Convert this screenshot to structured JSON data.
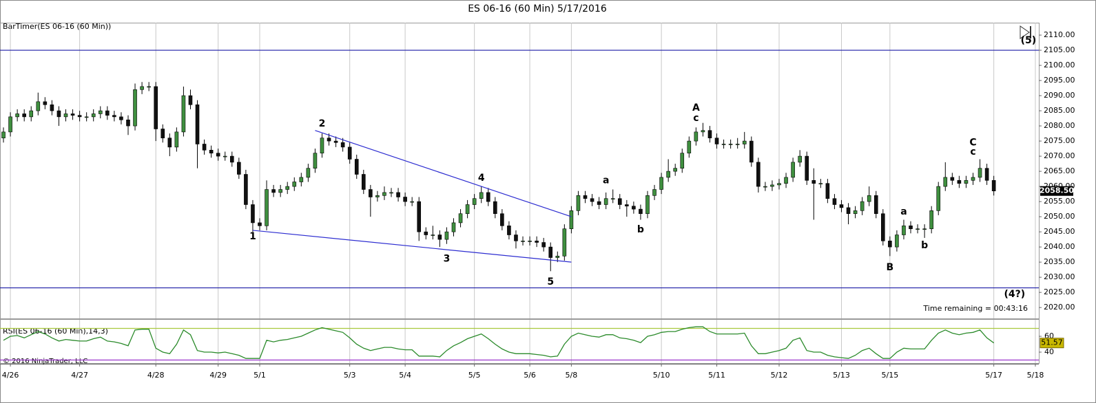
{
  "chart_data": {
    "type": "candlestick",
    "title": "ES 06-16 (60 Min)  5/17/2016",
    "indicator_label": "BarTimer(ES 06-16 (60 Min))",
    "timer_text": "Time remaining = 00:43:16",
    "copyright": "© 2016 NinjaTrader, LLC",
    "categories": [
      null,
      "4/26",
      null,
      null,
      null,
      null,
      null,
      null,
      null,
      null,
      null,
      "4/27",
      null,
      null,
      null,
      null,
      null,
      null,
      null,
      null,
      null,
      null,
      "4/28",
      null,
      null,
      null,
      null,
      null,
      null,
      null,
      null,
      "4/29",
      null,
      null,
      null,
      null,
      null,
      "5/1",
      null,
      null,
      null,
      null,
      null,
      null,
      null,
      null,
      null,
      null,
      null,
      null,
      "5/3",
      null,
      null,
      null,
      null,
      null,
      null,
      null,
      "5/4",
      null,
      null,
      null,
      null,
      null,
      null,
      null,
      null,
      null,
      "5/5",
      null,
      null,
      null,
      null,
      null,
      null,
      null,
      "5/6",
      null,
      null,
      null,
      null,
      null,
      "5/8",
      null,
      null,
      null,
      null,
      null,
      null,
      null,
      null,
      null,
      null,
      null,
      null,
      "5/10",
      null,
      null,
      null,
      null,
      null,
      null,
      null,
      "5/11",
      null,
      null,
      null,
      null,
      null,
      null,
      null,
      null,
      "5/12",
      null,
      null,
      null,
      null,
      null,
      null,
      null,
      null,
      "5/13",
      null,
      null,
      null,
      null,
      null,
      null,
      "5/15",
      null,
      null,
      null,
      null,
      null,
      null,
      null,
      null,
      null,
      null,
      null,
      null,
      null,
      null,
      "5/17",
      null,
      null,
      null,
      null,
      null,
      "5/18"
    ],
    "open": [
      2076,
      2078,
      2083,
      2084,
      2083,
      2085,
      2088,
      2087,
      2085,
      2083,
      2084,
      2083.5,
      2083,
      2083,
      2084,
      2085,
      2083.5,
      2083,
      2082,
      2080,
      2092,
      2093,
      2093,
      2079,
      2076,
      2073,
      2078,
      2090,
      2087,
      2074,
      2072,
      2071,
      2070,
      2070,
      2068,
      2064,
      2054,
      2048,
      2047,
      2059,
      2058,
      2059,
      2060,
      2061.5,
      2063,
      2066,
      2071,
      2076,
      2075,
      2074.5,
      2073,
      2069,
      2064,
      2059,
      2056.5,
      2057,
      2058,
      2058,
      2056.5,
      2055,
      2055,
      2045,
      2044,
      2044,
      2042.5,
      2045,
      2048,
      2051,
      2054,
      2056,
      2058,
      2055,
      2051,
      2047,
      2044,
      2042,
      2042,
      2042,
      2041.5,
      2040,
      2036.5,
      2037,
      2046,
      2052,
      2057,
      2056,
      2055,
      2054,
      2056,
      2056,
      2054,
      2053.5,
      2052.5,
      2051,
      2057,
      2059,
      2063,
      2065,
      2066,
      2071,
      2075,
      2078,
      2078.5,
      2076,
      2074,
      2074,
      2074,
      2074,
      2075,
      2068,
      2060,
      2060,
      2060.5,
      2061,
      2063,
      2068,
      2070,
      2062,
      2061,
      2061,
      2056,
      2054,
      2053,
      2051,
      2052,
      2055,
      2057,
      2051,
      2042,
      2040,
      2044,
      2047,
      2046,
      2046,
      2046,
      2052,
      2060,
      2063,
      2062,
      2061,
      2062,
      2063,
      2066,
      2062,
      null,
      null,
      null,
      null,
      null,
      null
    ],
    "high": [
      2079.5,
      2084.5,
      2085.5,
      2085.5,
      2086.5,
      2091,
      2089.5,
      2088.5,
      2086.5,
      2085.5,
      2085.5,
      2085,
      2084.5,
      2085.5,
      2086.5,
      2086.5,
      2085,
      2084.5,
      2083.5,
      2094,
      2094.5,
      2094.5,
      2094.5,
      2080.5,
      2077.5,
      2079.5,
      2093,
      2092,
      2088.5,
      2075.5,
      2073.5,
      2072.5,
      2071.5,
      2071.5,
      2069.5,
      2065.5,
      2055.5,
      2049.5,
      2062,
      2060.5,
      2060.5,
      2061.5,
      2063,
      2064.5,
      2067.5,
      2072.5,
      2077.5,
      2077.5,
      2076.5,
      2076,
      2074.5,
      2070.5,
      2065.5,
      2060.5,
      2058.5,
      2060,
      2059.5,
      2059.5,
      2058,
      2056.5,
      2056.5,
      2046.5,
      2047,
      2045.5,
      2046.5,
      2049.5,
      2052.5,
      2055.5,
      2057.5,
      2060,
      2059.5,
      2056.5,
      2052.5,
      2048.5,
      2045.5,
      2043.5,
      2043.5,
      2043.5,
      2043,
      2041.5,
      2038.5,
      2047.5,
      2053.5,
      2058.5,
      2058.5,
      2057.5,
      2056.5,
      2058,
      2059,
      2057.5,
      2055.5,
      2055,
      2054,
      2058.5,
      2060.5,
      2064.5,
      2069,
      2067.5,
      2072.5,
      2076.5,
      2079.5,
      2081,
      2080,
      2077.5,
      2075.5,
      2075.5,
      2076,
      2078,
      2076.5,
      2069.5,
      2061.5,
      2062,
      2062.5,
      2064.5,
      2069.5,
      2072,
      2071.5,
      2066,
      2062.5,
      2062.5,
      2057.5,
      2055.5,
      2054.5,
      2053.5,
      2056.5,
      2060,
      2058.5,
      2052.5,
      2043.5,
      2045.5,
      2049,
      2048.5,
      2047.5,
      2047.5,
      2053.5,
      2061.5,
      2068,
      2064.5,
      2063.5,
      2063.5,
      2064.5,
      2069,
      2067.5,
      2063.5,
      null,
      null,
      null,
      null,
      null,
      null
    ],
    "low": [
      2074.5,
      2076.5,
      2081.5,
      2081.5,
      2081.5,
      2083.5,
      2085.5,
      2083.5,
      2080,
      2081.5,
      2082,
      2081.5,
      2081.5,
      2081.5,
      2082.5,
      2082,
      2081.5,
      2080.5,
      2077,
      2078.5,
      2090.5,
      2091.5,
      2075,
      2074.5,
      2070,
      2071.5,
      2076.5,
      2085.5,
      2066,
      2070.5,
      2069.5,
      2068.5,
      2068.5,
      2066.5,
      2062.5,
      2052.5,
      2045,
      2045.5,
      2045.5,
      2056.5,
      2056.5,
      2057.5,
      2058.5,
      2060,
      2061.5,
      2064.5,
      2069.5,
      2073.5,
      2073,
      2071.5,
      2067.5,
      2062.5,
      2057.5,
      2050,
      2055,
      2055.5,
      2056.5,
      2055,
      2053.5,
      2053.5,
      2042,
      2042.5,
      2042.5,
      2040,
      2041,
      2043.5,
      2046.5,
      2049.5,
      2052.5,
      2054.5,
      2053.5,
      2049.5,
      2045.5,
      2042.5,
      2039.5,
      2040.5,
      2040.5,
      2040,
      2038.5,
      2032,
      2035,
      2035.5,
      2044.5,
      2050.5,
      2054.5,
      2053.5,
      2052.5,
      2052.5,
      2054.5,
      2052.5,
      2050,
      2051,
      2049,
      2049.5,
      2055.5,
      2057.5,
      2061.5,
      2063.5,
      2064.5,
      2069.5,
      2073.5,
      2076.5,
      2074.5,
      2072.5,
      2072.5,
      2072.5,
      2072.5,
      2072.5,
      2066.5,
      2058,
      2058.5,
      2058.5,
      2059,
      2059.5,
      2061.5,
      2066.5,
      2060.5,
      2049,
      2059.5,
      2054.5,
      2052.5,
      2051.5,
      2047.5,
      2049.5,
      2050.5,
      2053.5,
      2049.5,
      2040.5,
      2037,
      2038.5,
      2042.5,
      2044.5,
      2044.5,
      2043,
      2044.5,
      2050.5,
      2058.5,
      2060.5,
      2059.5,
      2059.5,
      2060.5,
      2061.5,
      2060.5,
      2057,
      null,
      null,
      null,
      null,
      null,
      null
    ],
    "close": [
      2078,
      2083,
      2084,
      2083,
      2085,
      2088,
      2087,
      2085,
      2083,
      2084,
      2083.5,
      2083,
      2083,
      2084,
      2085,
      2083.5,
      2083,
      2082,
      2080,
      2092,
      2093,
      2093,
      2079,
      2076,
      2073,
      2078,
      2090,
      2087,
      2074,
      2072,
      2071,
      2070,
      2070,
      2068,
      2064,
      2054,
      2048,
      2047,
      2059,
      2058,
      2059,
      2060,
      2061.5,
      2063,
      2066,
      2071,
      2076,
      2075,
      2074.5,
      2073,
      2069,
      2064,
      2059,
      2056.5,
      2057,
      2058,
      2058,
      2056.5,
      2055,
      2055,
      2045,
      2044,
      2044,
      2042.5,
      2045,
      2048,
      2051,
      2054,
      2056,
      2058,
      2055,
      2051,
      2047,
      2044,
      2042,
      2042,
      2042,
      2041.5,
      2040,
      2036.5,
      2037,
      2046,
      2052,
      2057,
      2056,
      2055,
      2054,
      2056,
      2056,
      2054,
      2053.5,
      2052.5,
      2051,
      2057,
      2059,
      2063,
      2065,
      2066,
      2071,
      2075,
      2078,
      2078.5,
      2076,
      2074,
      2074,
      2074,
      2074,
      2075,
      2068,
      2060,
      2060,
      2060.5,
      2061,
      2063,
      2068,
      2070,
      2062,
      2061,
      2061,
      2056,
      2054,
      2053,
      2051,
      2052,
      2055,
      2057,
      2051,
      2042,
      2040,
      2044,
      2047,
      2046,
      2046,
      2046,
      2052,
      2060,
      2063,
      2062,
      2061,
      2062,
      2063,
      2066,
      2062,
      2058.5,
      null,
      null,
      null,
      null,
      null,
      null
    ],
    "close_label": "2058.50",
    "up_color": "#3f8f3f",
    "down_color": "#111111",
    "ylim": [
      2016.4,
      2114.1
    ],
    "yticks": [
      {
        "value": 2020,
        "label": "2020.00"
      },
      {
        "value": 2025,
        "label": "2025.00"
      },
      {
        "value": 2030,
        "label": "2030.00"
      },
      {
        "value": 2035,
        "label": "2035.00"
      },
      {
        "value": 2040,
        "label": "2040.00"
      },
      {
        "value": 2045,
        "label": "2045.00"
      },
      {
        "value": 2050,
        "label": "2050.00"
      },
      {
        "value": 2055,
        "label": "2055.00"
      },
      {
        "value": 2060,
        "label": "2060.00"
      },
      {
        "value": 2065,
        "label": "2065.00"
      },
      {
        "value": 2070,
        "label": "2070.00"
      },
      {
        "value": 2075,
        "label": "2075.00"
      },
      {
        "value": 2080,
        "label": "2080.00"
      },
      {
        "value": 2085,
        "label": "2085.00"
      },
      {
        "value": 2090,
        "label": "2090.00"
      },
      {
        "value": 2095,
        "label": "2095.00"
      },
      {
        "value": 2100,
        "label": "2100.00"
      },
      {
        "value": 2105,
        "label": "2105.00"
      },
      {
        "value": 2110,
        "label": "2110.00"
      }
    ],
    "grid": true,
    "hlines": [
      2105,
      2026.5
    ],
    "hline_color": "#1a1aa6",
    "trendlines": [
      {
        "x": [
          45,
          82
        ],
        "y": [
          2078.5,
          2050
        ]
      },
      {
        "x": [
          36,
          82
        ],
        "y": [
          2045.5,
          2035
        ]
      }
    ],
    "trendline_color": "#2b2bd0",
    "annotations": [
      {
        "text": "1",
        "x": 36,
        "y": 2043.4
      },
      {
        "text": "2",
        "x": 46,
        "y": 2080.7
      },
      {
        "text": "3",
        "x": 64,
        "y": 2036.1
      },
      {
        "text": "4",
        "x": 69,
        "y": 2062.7
      },
      {
        "text": "5",
        "x": 79,
        "y": 2028.4
      },
      {
        "text": "a",
        "x": 87,
        "y": 2062
      },
      {
        "text": "b",
        "x": 92,
        "y": 2045.7
      },
      {
        "text": "A",
        "x": 100,
        "y": 2085.9
      },
      {
        "text": "c",
        "x": 100,
        "y": 2082.5
      },
      {
        "text": "B",
        "x": 128,
        "y": 2033.2
      },
      {
        "text": "a",
        "x": 130,
        "y": 2051.6
      },
      {
        "text": "b",
        "x": 133,
        "y": 2040.5
      },
      {
        "text": "C",
        "x": 140,
        "y": 2074.5
      },
      {
        "text": "c",
        "x": 140,
        "y": 2071.4
      },
      {
        "text": "(5)",
        "x": 148,
        "y": 2108.2
      },
      {
        "text": "(4?)",
        "x": 146,
        "y": 2024.3
      }
    ],
    "rsi": {
      "label": "RSI(ES 06-16 (60 Min),14,3)",
      "color": "#2a8a2a",
      "ylim": [
        26.1,
        80.9
      ],
      "yticks": [
        40,
        60
      ],
      "levels": [
        70,
        30
      ],
      "level_colors": [
        "#a8c83c",
        "#9932cc"
      ],
      "values": [
        55,
        60,
        61,
        58,
        62,
        66,
        63,
        58,
        54,
        56,
        55,
        54,
        54,
        57,
        59,
        54,
        53,
        51,
        48,
        68,
        69,
        69,
        45,
        40,
        38,
        50,
        68,
        62,
        42,
        40,
        40,
        39,
        40,
        38,
        36,
        32,
        32,
        32,
        55,
        53,
        55,
        56,
        58,
        60,
        64,
        68,
        71,
        69,
        67,
        65,
        58,
        50,
        45,
        42,
        44,
        46,
        46,
        44,
        43,
        43,
        35,
        35,
        35,
        34,
        42,
        48,
        52,
        57,
        60,
        63,
        57,
        50,
        44,
        40,
        38,
        38,
        38,
        37,
        36,
        34,
        35,
        50,
        60,
        64,
        62,
        60,
        59,
        62,
        62,
        58,
        57,
        55,
        52,
        60,
        62,
        65,
        66,
        66,
        69,
        71,
        72,
        72,
        66,
        63,
        63,
        63,
        63,
        64,
        48,
        38,
        38,
        40,
        42,
        45,
        55,
        58,
        42,
        40,
        40,
        36,
        34,
        33,
        32,
        36,
        42,
        45,
        38,
        32,
        32,
        40,
        45,
        44,
        44,
        44,
        55,
        64,
        68,
        64,
        62,
        64,
        65,
        68,
        58,
        51.57,
        null,
        null,
        null,
        null,
        null,
        null
      ]
    }
  }
}
